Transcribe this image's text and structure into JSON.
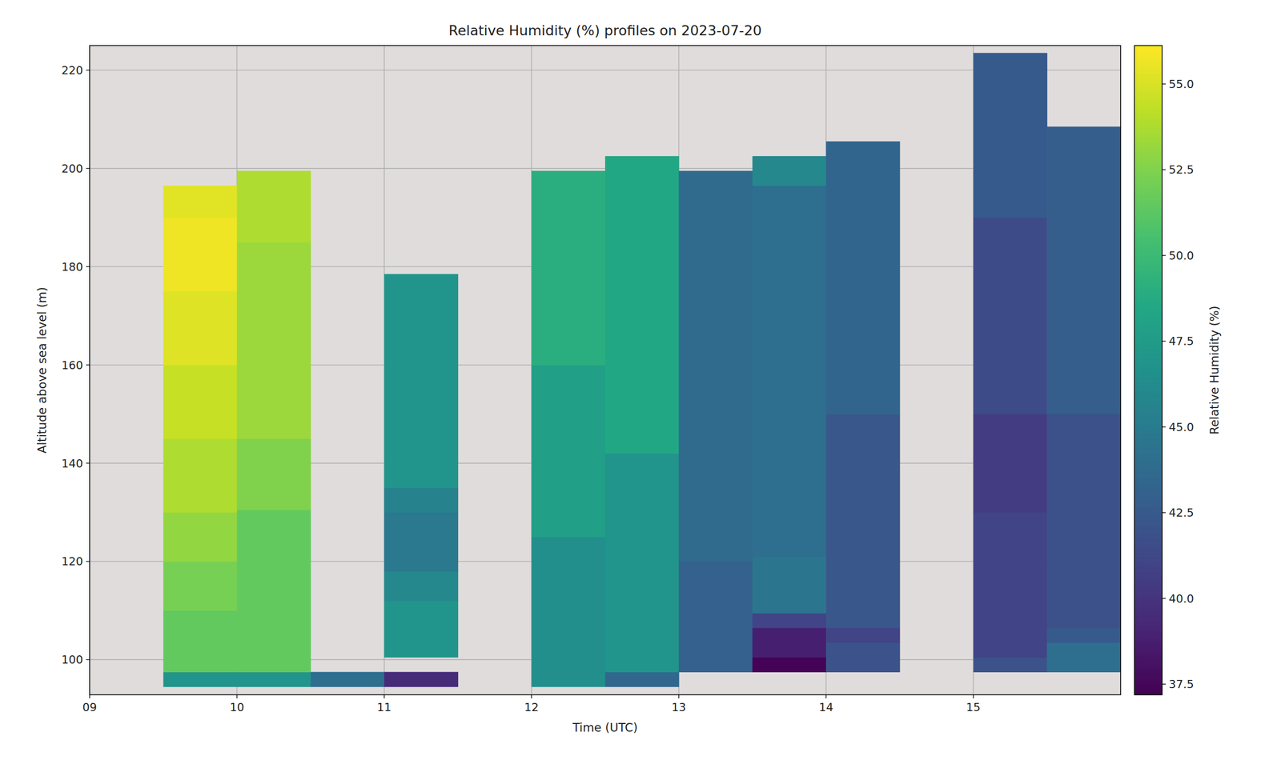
{
  "chart_data": {
    "type": "heatmap",
    "title": "Relative Humidity (%) profiles on 2023-07-20",
    "x_label": "Time (UTC)",
    "y_label": "Altitude above sea level (m)",
    "xlim": [
      9,
      16
    ],
    "xticks": [
      {
        "value": 9,
        "label": "09"
      },
      10,
      11,
      12,
      13,
      14,
      15
    ],
    "ylim": [
      92.85,
      225
    ],
    "yticks": [
      100,
      120,
      140,
      160,
      180,
      200,
      220
    ],
    "grid": true,
    "colorbar": {
      "label": "Relative Humidity (%)",
      "range": [
        37.19,
        56.12
      ],
      "ticks": [
        37.5,
        {
          "value": 40,
          "label": "40.0"
        },
        42.5,
        {
          "value": 45,
          "label": "45.0"
        },
        47.5,
        {
          "value": 50,
          "label": "50.0"
        },
        52.5,
        {
          "value": 55,
          "label": "55.0"
        }
      ]
    },
    "cells": [
      {
        "x0": 9.5,
        "x1": 10,
        "y0": 94.5,
        "y1": 97.5,
        "value": 47
      },
      {
        "x0": 9.5,
        "x1": 10,
        "y0": 97.5,
        "y1": 110,
        "value": 51.5
      },
      {
        "x0": 9.5,
        "x1": 10,
        "y0": 110,
        "y1": 120,
        "value": 52.2
      },
      {
        "x0": 9.5,
        "x1": 10,
        "y0": 120,
        "y1": 130,
        "value": 53
      },
      {
        "x0": 9.5,
        "x1": 10,
        "y0": 130,
        "y1": 145,
        "value": 53.8
      },
      {
        "x0": 9.5,
        "x1": 10,
        "y0": 145,
        "y1": 160,
        "value": 54.5
      },
      {
        "x0": 9.5,
        "x1": 10,
        "y0": 160,
        "y1": 175,
        "value": 55.2
      },
      {
        "x0": 9.5,
        "x1": 10,
        "y0": 175,
        "y1": 190,
        "value": 55.7
      },
      {
        "x0": 9.5,
        "x1": 10,
        "y0": 190,
        "y1": 196.5,
        "value": 55.3
      },
      {
        "x0": 10,
        "x1": 10.5,
        "y0": 94.5,
        "y1": 97.5,
        "value": 47
      },
      {
        "x0": 10,
        "x1": 10.5,
        "y0": 97.5,
        "y1": 130.5,
        "value": 51.5
      },
      {
        "x0": 10,
        "x1": 10.5,
        "y0": 130.5,
        "y1": 145,
        "value": 52.5
      },
      {
        "x0": 10,
        "x1": 10.5,
        "y0": 145,
        "y1": 185,
        "value": 53.3
      },
      {
        "x0": 10,
        "x1": 10.5,
        "y0": 185,
        "y1": 199.5,
        "value": 53.8
      },
      {
        "x0": 10.5,
        "x1": 11,
        "y0": 94.5,
        "y1": 97.5,
        "value": 44
      },
      {
        "x0": 11,
        "x1": 11.5,
        "y0": 94.5,
        "y1": 97.5,
        "value": 39.5
      },
      {
        "x0": 11,
        "x1": 11.5,
        "y0": 100.5,
        "y1": 112,
        "value": 47
      },
      {
        "x0": 11,
        "x1": 11.5,
        "y0": 112,
        "y1": 118,
        "value": 46
      },
      {
        "x0": 11,
        "x1": 11.5,
        "y0": 118,
        "y1": 130,
        "value": 44.8
      },
      {
        "x0": 11,
        "x1": 11.5,
        "y0": 130,
        "y1": 135,
        "value": 45.5
      },
      {
        "x0": 11,
        "x1": 11.5,
        "y0": 135,
        "y1": 178.5,
        "value": 47
      },
      {
        "x0": 12,
        "x1": 12.5,
        "y0": 94.5,
        "y1": 125,
        "value": 46.5
      },
      {
        "x0": 12,
        "x1": 12.5,
        "y0": 125,
        "y1": 160,
        "value": 47.8
      },
      {
        "x0": 12,
        "x1": 12.5,
        "y0": 160,
        "y1": 199.5,
        "value": 49
      },
      {
        "x0": 12.5,
        "x1": 13,
        "y0": 94.5,
        "y1": 97.5,
        "value": 43.5
      },
      {
        "x0": 12.5,
        "x1": 13,
        "y0": 97.5,
        "y1": 142,
        "value": 47
      },
      {
        "x0": 12.5,
        "x1": 13,
        "y0": 142,
        "y1": 202.5,
        "value": 48.5
      },
      {
        "x0": 13,
        "x1": 13.5,
        "y0": 97.5,
        "y1": 120,
        "value": 43
      },
      {
        "x0": 13,
        "x1": 13.5,
        "y0": 120,
        "y1": 199.5,
        "value": 43.8
      },
      {
        "x0": 13.5,
        "x1": 14,
        "y0": 97.5,
        "y1": 100.5,
        "value": 37.3
      },
      {
        "x0": 13.5,
        "x1": 14,
        "y0": 100.5,
        "y1": 106.5,
        "value": 38.8
      },
      {
        "x0": 13.5,
        "x1": 14,
        "y0": 106.5,
        "y1": 109.5,
        "value": 41
      },
      {
        "x0": 13.5,
        "x1": 14,
        "y0": 109.5,
        "y1": 121,
        "value": 44.5
      },
      {
        "x0": 13.5,
        "x1": 14,
        "y0": 121,
        "y1": 196.5,
        "value": 44
      },
      {
        "x0": 13.5,
        "x1": 14,
        "y0": 196.5,
        "y1": 202.5,
        "value": 46
      },
      {
        "x0": 14,
        "x1": 14.5,
        "y0": 97.5,
        "y1": 103.5,
        "value": 42
      },
      {
        "x0": 14,
        "x1": 14.5,
        "y0": 103.5,
        "y1": 106.5,
        "value": 41
      },
      {
        "x0": 14,
        "x1": 14.5,
        "y0": 106.5,
        "y1": 150,
        "value": 42.3
      },
      {
        "x0": 14,
        "x1": 14.5,
        "y0": 150,
        "y1": 205.5,
        "value": 43.3
      },
      {
        "x0": 15,
        "x1": 15.5,
        "y0": 97.5,
        "y1": 100.5,
        "value": 42
      },
      {
        "x0": 15,
        "x1": 15.5,
        "y0": 100.5,
        "y1": 130,
        "value": 41
      },
      {
        "x0": 15,
        "x1": 15.5,
        "y0": 130,
        "y1": 150,
        "value": 40.5
      },
      {
        "x0": 15,
        "x1": 15.5,
        "y0": 150,
        "y1": 190,
        "value": 41.5
      },
      {
        "x0": 15,
        "x1": 15.5,
        "y0": 190,
        "y1": 223.5,
        "value": 42.5
      },
      {
        "x0": 15.5,
        "x1": 16,
        "y0": 97.5,
        "y1": 103.5,
        "value": 44
      },
      {
        "x0": 15.5,
        "x1": 16,
        "y0": 103.5,
        "y1": 106.5,
        "value": 42.5
      },
      {
        "x0": 15.5,
        "x1": 16,
        "y0": 106.5,
        "y1": 150,
        "value": 41.8
      },
      {
        "x0": 15.5,
        "x1": 16,
        "y0": 150,
        "y1": 208.5,
        "value": 42.8
      }
    ]
  }
}
